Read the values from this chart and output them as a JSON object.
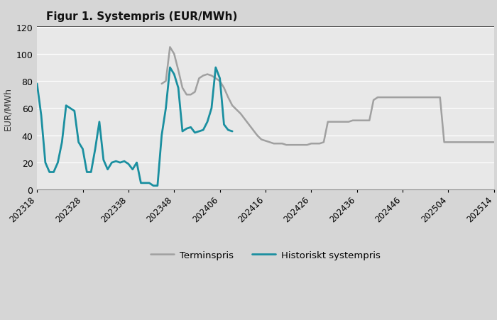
{
  "title": "Figur 1. Systempris (EUR/MWh)",
  "ylabel": "EUR/MWh",
  "fig_bg": "#d6d6d6",
  "title_bg": "#d6d6d6",
  "plot_bg": "#e8e8e8",
  "ylim": [
    0,
    120
  ],
  "yticks": [
    0,
    20,
    40,
    60,
    80,
    100,
    120
  ],
  "xtick_labels": [
    "202318",
    "202328",
    "202338",
    "202348",
    "202406",
    "202416",
    "202426",
    "202436",
    "202446",
    "202504",
    "202514"
  ],
  "terminspris_color": "#a0a0a0",
  "historiskt_color": "#1a8fa0",
  "legend_terminspris": "Terminspris",
  "legend_historiskt": "Historiskt systempris",
  "historiskt_x": [
    0,
    1,
    2,
    3,
    4,
    5,
    6,
    7,
    8,
    9,
    10,
    11,
    12,
    13,
    14,
    15,
    16,
    17,
    18,
    19,
    20,
    21,
    22,
    23,
    24,
    25,
    26,
    27,
    28,
    29,
    30,
    31,
    32,
    33,
    34,
    35,
    36,
    37,
    38,
    39,
    40,
    41,
    42,
    43,
    44,
    45,
    46,
    47
  ],
  "historiskt_y": [
    78,
    55,
    20,
    13,
    13,
    20,
    35,
    62,
    60,
    58,
    35,
    30,
    13,
    13,
    30,
    50,
    22,
    15,
    20,
    21,
    20,
    21,
    19,
    15,
    20,
    5,
    5,
    5,
    3,
    3,
    40,
    60,
    90,
    85,
    75,
    43,
    45,
    46,
    42,
    43,
    44,
    50,
    60,
    90,
    82,
    48,
    44,
    43
  ],
  "terminspris_x": [
    30,
    31,
    32,
    33,
    34,
    35,
    36,
    37,
    38,
    39,
    40,
    41,
    42,
    43,
    44,
    45,
    46,
    47,
    48,
    49,
    50,
    51,
    52,
    53,
    54,
    55,
    56,
    57,
    58,
    59,
    60,
    61,
    62,
    63,
    64,
    65,
    66,
    67,
    68,
    69,
    70,
    71,
    72,
    73,
    74,
    75,
    76,
    77,
    78,
    79,
    80,
    81,
    82,
    83,
    84,
    85,
    86,
    87,
    88,
    89,
    90,
    91,
    92,
    93,
    94,
    95,
    96,
    97,
    98,
    99,
    100,
    101,
    102,
    103,
    104,
    105,
    106,
    107,
    108,
    109,
    110
  ],
  "terminspris_y": [
    78,
    80,
    105,
    100,
    88,
    75,
    70,
    70,
    72,
    82,
    84,
    85,
    84,
    82,
    80,
    75,
    68,
    62,
    59,
    56,
    52,
    48,
    44,
    40,
    37,
    36,
    35,
    34,
    34,
    34,
    33,
    33,
    33,
    33,
    33,
    33,
    34,
    34,
    34,
    35,
    50,
    50,
    50,
    50,
    50,
    50,
    51,
    51,
    51,
    51,
    51,
    66,
    68,
    68,
    68,
    68,
    68,
    68,
    68,
    68,
    68,
    68,
    68,
    68,
    68,
    68,
    68,
    68,
    35,
    35,
    35,
    35,
    35,
    35,
    35,
    35,
    35,
    35,
    35,
    35,
    35
  ]
}
